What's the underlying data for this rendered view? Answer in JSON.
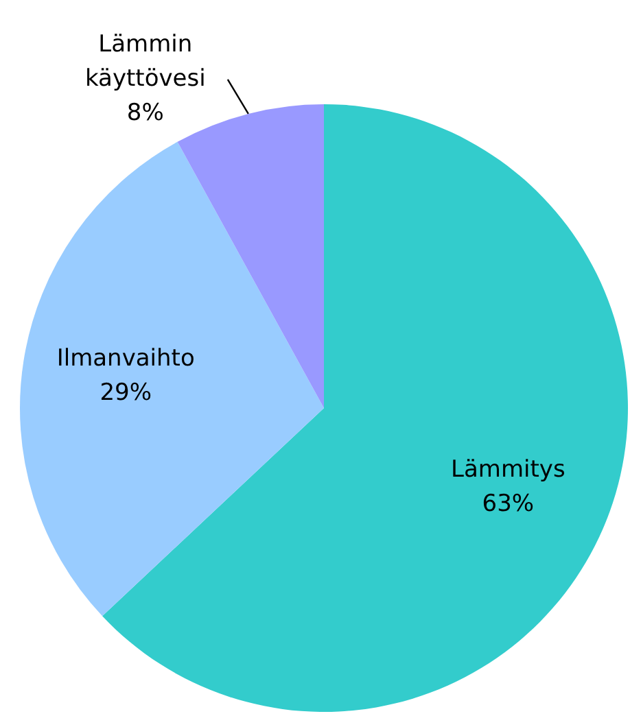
{
  "chart_data": {
    "type": "pie",
    "categories": [
      "Lämmitys",
      "Ilmanvaihto",
      "Lämmin käyttövesi"
    ],
    "values": [
      63,
      29,
      8
    ],
    "colors": [
      "#33cccc",
      "#99ccff",
      "#9999ff"
    ],
    "value_labels": [
      "63%",
      "29%",
      "8%"
    ],
    "legend": false
  }
}
